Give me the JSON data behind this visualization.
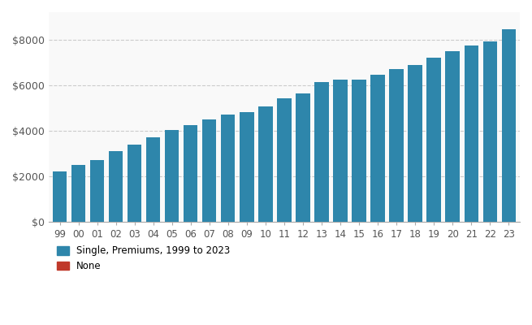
{
  "years": [
    "99",
    "00",
    "01",
    "02",
    "03",
    "04",
    "05",
    "06",
    "07",
    "08",
    "09",
    "10",
    "11",
    "12",
    "13",
    "14",
    "15",
    "16",
    "17",
    "18",
    "19",
    "20",
    "21",
    "22",
    "23"
  ],
  "values": [
    2196,
    2471,
    2689,
    3083,
    3383,
    3695,
    4024,
    4242,
    4479,
    4704,
    4824,
    5049,
    5429,
    5615,
    6119,
    6251,
    6251,
    6435,
    6690,
    6896,
    7188,
    7470,
    7739,
    7911,
    8435
  ],
  "bar_color": "#2e86ab",
  "legend_color1": "#2e86ab",
  "legend_color2": "#c0392b",
  "legend_label1": "Single, Premiums, 1999 to 2023",
  "legend_label2": "None",
  "yticks": [
    0,
    2000,
    4000,
    6000,
    8000
  ],
  "ytick_labels": [
    "$0",
    "$2000",
    "$4000",
    "$6000",
    "$8000"
  ],
  "ylim": [
    0,
    9200
  ],
  "bg_color": "#ffffff",
  "plot_bg_color": "#f9f9f9",
  "grid_color": "#cccccc",
  "axis_label_color": "#333333",
  "tick_label_color": "#555555"
}
